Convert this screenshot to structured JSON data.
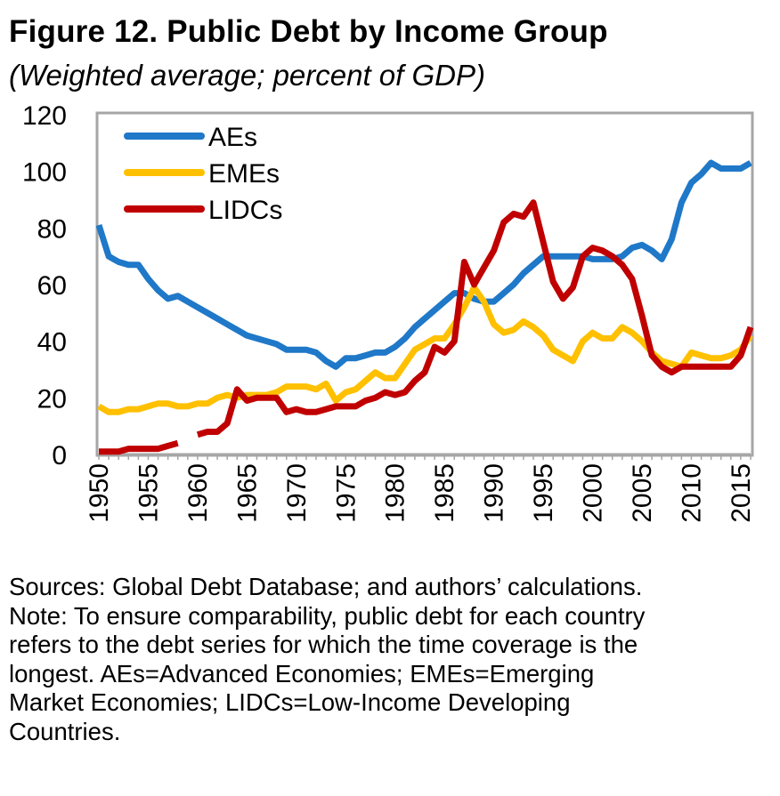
{
  "title": "Figure 12. Public Debt by Income Group",
  "subtitle": "(Weighted average; percent of GDP)",
  "chart_data": {
    "type": "line",
    "title": "Figure 12. Public Debt by Income Group",
    "subtitle": "(Weighted average; percent of GDP)",
    "xlabel": "",
    "ylabel": "",
    "ylim": [
      0,
      120
    ],
    "xlim": [
      1950,
      2016
    ],
    "y_ticks": [
      0,
      20,
      40,
      60,
      80,
      100,
      120
    ],
    "x_ticks": [
      1950,
      1955,
      1960,
      1965,
      1970,
      1975,
      1980,
      1985,
      1990,
      1995,
      2000,
      2005,
      2010,
      2015
    ],
    "grid": false,
    "legend_position": "top-left",
    "x": [
      1950,
      1951,
      1952,
      1953,
      1954,
      1955,
      1956,
      1957,
      1958,
      1959,
      1960,
      1961,
      1962,
      1963,
      1964,
      1965,
      1966,
      1967,
      1968,
      1969,
      1970,
      1971,
      1972,
      1973,
      1974,
      1975,
      1976,
      1977,
      1978,
      1979,
      1980,
      1981,
      1982,
      1983,
      1984,
      1985,
      1986,
      1987,
      1988,
      1989,
      1990,
      1991,
      1992,
      1993,
      1994,
      1995,
      1996,
      1997,
      1998,
      1999,
      2000,
      2001,
      2002,
      2003,
      2004,
      2005,
      2006,
      2007,
      2008,
      2009,
      2010,
      2011,
      2012,
      2013,
      2014,
      2015,
      2016
    ],
    "series": [
      {
        "name": "AEs",
        "color": "#1F78C8",
        "values": [
          81,
          70,
          68,
          67,
          67,
          62,
          58,
          55,
          56,
          54,
          52,
          50,
          48,
          46,
          44,
          42,
          41,
          40,
          39,
          37,
          37,
          37,
          36,
          33,
          31,
          34,
          34,
          35,
          36,
          36,
          38,
          41,
          45,
          48,
          51,
          54,
          57,
          57,
          55,
          54,
          54,
          57,
          60,
          64,
          67,
          70,
          70,
          70,
          70,
          70,
          69,
          69,
          69,
          70,
          73,
          74,
          72,
          69,
          76,
          89,
          96,
          99,
          103,
          101,
          101,
          101,
          103
        ]
      },
      {
        "name": "EMEs",
        "color": "#FFC000",
        "values": [
          17,
          15,
          15,
          16,
          16,
          17,
          18,
          18,
          17,
          17,
          18,
          18,
          20,
          21,
          20,
          21,
          21,
          21,
          22,
          24,
          24,
          24,
          23,
          25,
          19,
          22,
          23,
          26,
          29,
          27,
          27,
          32,
          37,
          39,
          41,
          41,
          46,
          52,
          59,
          54,
          46,
          43,
          44,
          47,
          45,
          42,
          37,
          35,
          33,
          40,
          43,
          41,
          41,
          45,
          43,
          40,
          36,
          33,
          32,
          31,
          36,
          35,
          34,
          34,
          35,
          37,
          42
        ]
      },
      {
        "name": "LIDCs",
        "color": "#C00000",
        "values": [
          1,
          1,
          1,
          2,
          2,
          2,
          2,
          3,
          4,
          null,
          7,
          8,
          8,
          11,
          23,
          19,
          20,
          20,
          20,
          15,
          16,
          15,
          15,
          16,
          17,
          17,
          17,
          19,
          20,
          22,
          21,
          22,
          26,
          29,
          38,
          36,
          40,
          68,
          60,
          66,
          72,
          82,
          85,
          84,
          89,
          75,
          61,
          55,
          59,
          70,
          73,
          72,
          70,
          67,
          62,
          49,
          35,
          31,
          29,
          31,
          31,
          31,
          31,
          31,
          31,
          35,
          45
        ]
      }
    ]
  },
  "notes": [
    "Sources: Global Debt Database; and authors’ calculations.",
    "Note: To ensure comparability, public debt for each country",
    "refers to the debt series for which the time coverage is the",
    "longest.  AEs=Advanced Economies; EMEs=Emerging",
    "Market Economies; LIDCs=Low-Income Developing",
    "Countries."
  ]
}
